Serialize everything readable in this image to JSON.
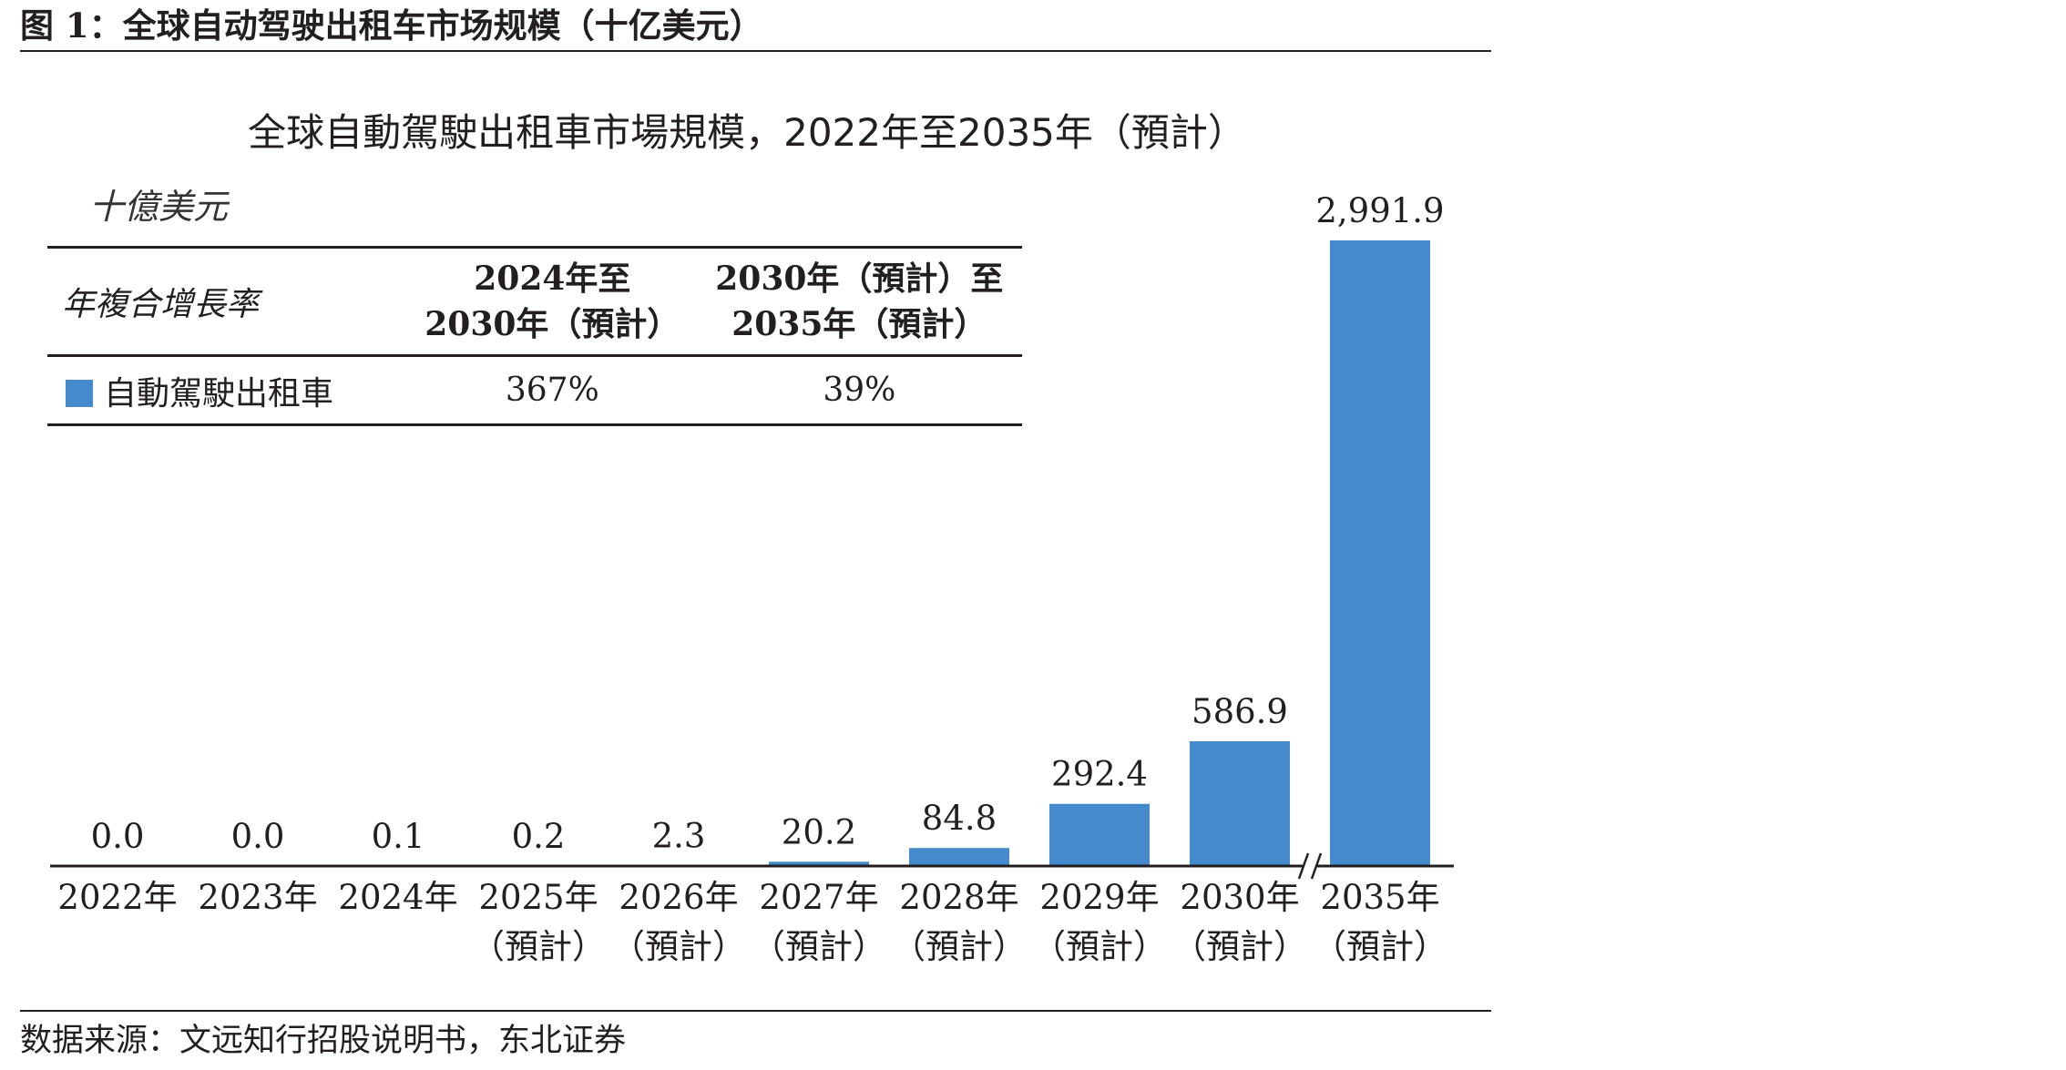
{
  "figure": {
    "caption": "图 1：全球自动驾驶出租车市场规模（十亿美元）",
    "source": "数据来源：文远知行招股说明书，东北证券"
  },
  "colors": {
    "bar": "#448acc",
    "text": "#231f20"
  },
  "cagr_table": {
    "header_label": "年複合增長率",
    "columns": [
      {
        "line1": "2024年至",
        "line2": "2030年（預計）"
      },
      {
        "line1": "2030年（預計）至",
        "line2": "2035年（預計）"
      }
    ],
    "rows": [
      {
        "series": "自動駕駛出租車",
        "values": [
          "367%",
          "39%"
        ]
      }
    ]
  },
  "chart_data": {
    "type": "bar",
    "title": "全球自動駕駛出租車市場規模，2022年至2035年（預計）",
    "unit_label": "十億美元",
    "categories": [
      "2022年",
      "2023年",
      "2024年",
      "2025年",
      "2026年",
      "2027年",
      "2028年",
      "2029年",
      "2030年",
      "2035年"
    ],
    "category_sublabels": [
      "",
      "",
      "",
      "（預計）",
      "（預計）",
      "（預計）",
      "（預計）",
      "（預計）",
      "（預計）",
      "（預計）"
    ],
    "series": [
      {
        "name": "自動駕駛出租車",
        "values": [
          0.0,
          0.0,
          0.1,
          0.2,
          2.3,
          20.2,
          84.8,
          292.4,
          586.9,
          2991.9
        ],
        "labels": [
          "0.0",
          "0.0",
          "0.1",
          "0.2",
          "2.3",
          "20.2",
          "84.8",
          "292.4",
          "586.9",
          "2,991.9"
        ]
      }
    ],
    "axis_break_between": [
      "2030年",
      "2035年"
    ],
    "grid": false,
    "legend": "in table"
  }
}
